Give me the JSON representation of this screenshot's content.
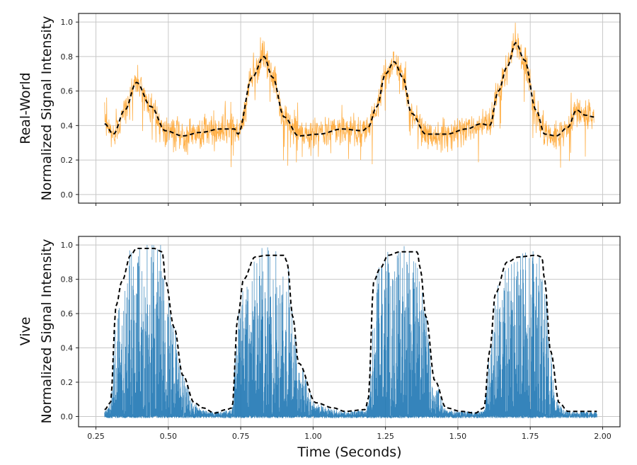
{
  "chart_data": [
    {
      "type": "line",
      "ylabel": [
        "Real-World",
        "Normalized Signal Intensity"
      ],
      "xlabel": "",
      "xlim": [
        0.19,
        2.06
      ],
      "ylim": [
        -0.05,
        1.05
      ],
      "xticks": [
        0.25,
        0.5,
        0.75,
        1.0,
        1.25,
        1.5,
        1.75,
        2.0
      ],
      "xtick_labels_shown": false,
      "yticks": [
        "0.0",
        "0.2",
        "0.4",
        "0.6",
        "0.8",
        "1.0"
      ],
      "grid": true,
      "colors": {
        "raw": "#ffa126",
        "smoothed": "#000000"
      },
      "series": [
        {
          "style": "raw noisy signal",
          "color": "#ffa126"
        },
        {
          "style": "dashed smoothed envelope",
          "color": "#000000",
          "x": [
            0.28,
            0.31,
            0.35,
            0.39,
            0.44,
            0.49,
            0.55,
            0.61,
            0.68,
            0.73,
            0.74,
            0.79,
            0.83,
            0.86,
            0.9,
            0.95,
            1.02,
            1.1,
            1.17,
            1.19,
            1.22,
            1.25,
            1.28,
            1.31,
            1.34,
            1.39,
            1.46,
            1.53,
            1.58,
            1.61,
            1.64,
            1.67,
            1.7,
            1.73,
            1.77,
            1.8,
            1.84,
            1.88,
            1.91,
            1.94,
            1.97
          ],
          "y": [
            0.41,
            0.35,
            0.49,
            0.65,
            0.51,
            0.37,
            0.34,
            0.36,
            0.38,
            0.38,
            0.35,
            0.68,
            0.8,
            0.68,
            0.45,
            0.34,
            0.35,
            0.38,
            0.37,
            0.39,
            0.51,
            0.7,
            0.77,
            0.68,
            0.47,
            0.35,
            0.35,
            0.38,
            0.41,
            0.4,
            0.6,
            0.74,
            0.88,
            0.78,
            0.49,
            0.35,
            0.34,
            0.39,
            0.49,
            0.46,
            0.45
          ]
        }
      ]
    },
    {
      "type": "line",
      "ylabel": [
        "Vive",
        "Normalized Signal Intensity"
      ],
      "xlabel": "Time (Seconds)",
      "xlim": [
        0.19,
        2.06
      ],
      "ylim": [
        -0.06,
        1.05
      ],
      "xticks": [
        "0.25",
        "0.50",
        "0.75",
        "1.00",
        "1.25",
        "1.50",
        "1.75",
        "2.00"
      ],
      "yticks": [
        "0.0",
        "0.2",
        "0.4",
        "0.6",
        "0.8",
        "1.0"
      ],
      "grid": true,
      "colors": {
        "raw": "#1f77b4",
        "smoothed": "#000000"
      },
      "series": [
        {
          "style": "raw noisy signal",
          "color": "#1f77b4"
        },
        {
          "style": "dashed smoothed envelope",
          "color": "#000000",
          "x": [
            0.28,
            0.3,
            0.32,
            0.34,
            0.37,
            0.39,
            0.45,
            0.48,
            0.49,
            0.52,
            0.55,
            0.59,
            0.62,
            0.66,
            0.7,
            0.72,
            0.74,
            0.76,
            0.8,
            0.84,
            0.9,
            0.91,
            0.93,
            0.95,
            1.01,
            1.07,
            1.11,
            1.18,
            1.19,
            1.21,
            1.23,
            1.26,
            1.3,
            1.36,
            1.37,
            1.39,
            1.42,
            1.46,
            1.51,
            1.56,
            1.59,
            1.61,
            1.63,
            1.67,
            1.71,
            1.77,
            1.79,
            1.8,
            1.82,
            1.85,
            1.88,
            1.93,
            1.98
          ],
          "y": [
            0.04,
            0.08,
            0.65,
            0.79,
            0.94,
            0.98,
            0.98,
            0.96,
            0.79,
            0.52,
            0.24,
            0.08,
            0.05,
            0.02,
            0.04,
            0.05,
            0.58,
            0.8,
            0.93,
            0.94,
            0.94,
            0.9,
            0.58,
            0.31,
            0.08,
            0.05,
            0.03,
            0.04,
            0.1,
            0.79,
            0.86,
            0.94,
            0.96,
            0.96,
            0.86,
            0.58,
            0.21,
            0.05,
            0.03,
            0.02,
            0.05,
            0.38,
            0.72,
            0.9,
            0.93,
            0.94,
            0.93,
            0.79,
            0.38,
            0.08,
            0.03,
            0.03,
            0.03
          ]
        }
      ]
    }
  ]
}
